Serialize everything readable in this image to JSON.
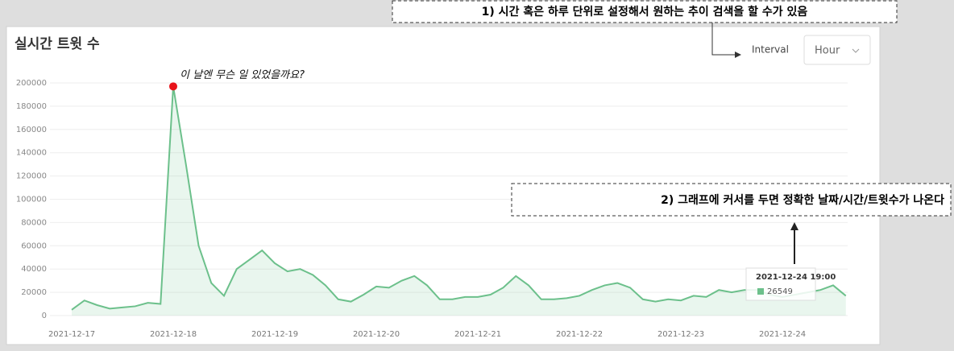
{
  "notes": {
    "top": "1) 시간 혹은 하루 단위로 설정해서 원하는 추이 검색을 할 수가 있음",
    "middle": "2) 그래프에 커서를 두면 정확한 날짜/시간/트윗수가 나온다"
  },
  "controls": {
    "interval_label": "Interval",
    "interval_value": "Hour"
  },
  "tooltip": {
    "title": "2021-12-24 19:00",
    "value": "26549"
  },
  "chart_data": {
    "type": "line",
    "title": "실시간 트윗 수",
    "annotation": "이 날엔 무슨 일 있었을까요?",
    "highlight_index": 8,
    "highlight_color": "#e8131a",
    "categories": [
      "2021-12-17",
      null,
      null,
      null,
      null,
      null,
      null,
      null,
      "2021-12-18",
      null,
      null,
      null,
      null,
      null,
      null,
      null,
      "2021-12-19",
      null,
      null,
      null,
      null,
      null,
      null,
      null,
      "2021-12-20",
      null,
      null,
      null,
      null,
      null,
      null,
      null,
      "2021-12-21",
      null,
      null,
      null,
      null,
      null,
      null,
      null,
      "2021-12-22",
      null,
      null,
      null,
      null,
      null,
      null,
      null,
      "2021-12-23",
      null,
      null,
      null,
      null,
      null,
      null,
      null,
      "2021-12-24",
      null,
      null,
      null,
      null,
      null
    ],
    "series": [
      {
        "color": "#6cc08b",
        "values": [
          5000,
          13000,
          9000,
          6000,
          7000,
          8000,
          11000,
          10000,
          197000,
          130000,
          60000,
          28000,
          17000,
          40000,
          48000,
          56000,
          45000,
          38000,
          40000,
          35000,
          26000,
          14000,
          12000,
          18000,
          25000,
          24000,
          30000,
          34000,
          26000,
          14000,
          14000,
          16000,
          16000,
          18000,
          24000,
          34000,
          26000,
          14000,
          14000,
          15000,
          17000,
          22000,
          26000,
          28000,
          24000,
          14000,
          12000,
          14000,
          13000,
          17000,
          16000,
          22000,
          20000,
          22000,
          22000,
          18000,
          16000,
          18000,
          20000,
          22000,
          26000,
          17000
        ]
      }
    ],
    "ylim": [
      0,
      200000
    ],
    "yticks": [
      0,
      20000,
      40000,
      60000,
      80000,
      100000,
      120000,
      140000,
      160000,
      180000,
      200000
    ],
    "grid": true
  }
}
